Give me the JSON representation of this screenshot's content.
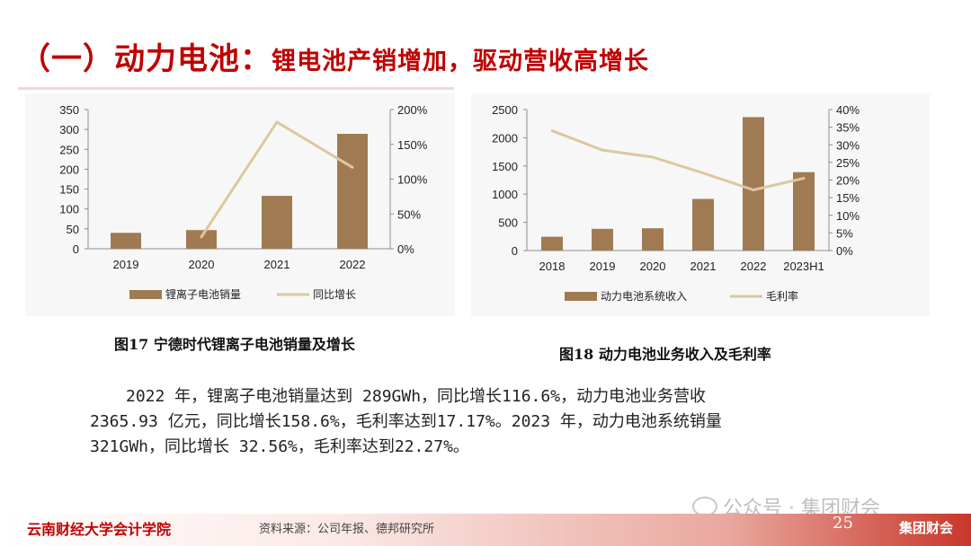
{
  "title": {
    "main": "（一）动力电池：",
    "sub": "锂电池产销增加，驱动营收高增长"
  },
  "chart_data": [
    {
      "type": "bar",
      "title": "",
      "caption": "图17 宁德时代锂离子电池销量及增长",
      "categories": [
        "2019",
        "2020",
        "2021",
        "2022"
      ],
      "series": [
        {
          "name": "锂离子电池销量",
          "type": "bar",
          "axis": "left",
          "values": [
            40,
            47,
            133,
            289
          ]
        },
        {
          "name": "同比增长",
          "type": "line",
          "axis": "right",
          "values": [
            null,
            17,
            182,
            117
          ]
        }
      ],
      "y_left": {
        "min": 0,
        "max": 350,
        "ticks": [
          "0",
          "50",
          "100",
          "150",
          "200",
          "250",
          "300",
          "350"
        ]
      },
      "y_right": {
        "min": 0,
        "max": 200,
        "ticks": [
          "0%",
          "50%",
          "100%",
          "150%",
          "200%"
        ]
      },
      "legend": "bottom",
      "grid": false,
      "colors": {
        "bar": "#a07a52",
        "line": "#dcc8a0"
      }
    },
    {
      "type": "bar",
      "title": "",
      "caption": "图18 动力电池业务收入及毛利率",
      "categories": [
        "2018",
        "2019",
        "2020",
        "2021",
        "2022",
        "2023H1"
      ],
      "series": [
        {
          "name": "动力电池系统收入",
          "type": "bar",
          "axis": "left",
          "values": [
            245,
            385,
            395,
            915,
            2366,
            1390
          ]
        },
        {
          "name": "毛利率",
          "type": "line",
          "axis": "right",
          "values": [
            34,
            28.5,
            26.5,
            22,
            17.2,
            20.5
          ]
        }
      ],
      "y_left": {
        "min": 0,
        "max": 2500,
        "ticks": [
          "0",
          "500",
          "1000",
          "1500",
          "2000",
          "2500"
        ]
      },
      "y_right": {
        "min": 0,
        "max": 40,
        "ticks": [
          "0%",
          "5%",
          "10%",
          "15%",
          "20%",
          "25%",
          "30%",
          "35%",
          "40%"
        ]
      },
      "legend": "bottom",
      "grid": false,
      "colors": {
        "bar": "#a07a52",
        "line": "#dcc8a0"
      }
    }
  ],
  "body": {
    "line1": "2022 年，锂离子电池销量达到 289GWh，同比增长116.6%，动力电池业务营收",
    "line2": "2365.93 亿元，同比增长158.6%，毛利率达到17.17%。2023 年，动力电池系统销量",
    "line3": "321GWh，同比增长 32.56%，毛利率达到22.27%。"
  },
  "watermark": "公众号 · 集团财会",
  "footer": {
    "left": "云南财经大学会计学院",
    "source": "资料来源：公司年报、德邦研究所",
    "page": "25",
    "right": "集团财会"
  }
}
